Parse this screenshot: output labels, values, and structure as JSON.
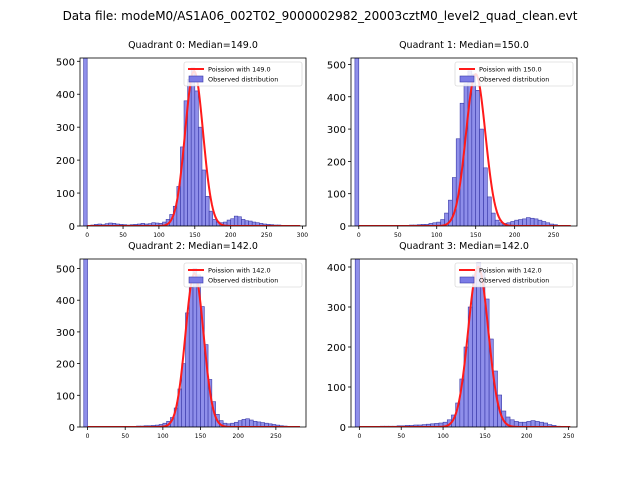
{
  "figure_title": "Data file: modeM0/AS1A06_002T02_9000002982_20003cztM0_level2_quad_clean.evt",
  "colors": {
    "hist_fill": "#7b7be6",
    "hist_edge": "#3a3aa8",
    "poisson_line": "#ff1a1a",
    "axis": "#000000"
  },
  "chart_data": [
    {
      "type": "bar",
      "title": "Quadrant 0: Median=149.0",
      "legend": [
        "Poission with 149.0",
        "Observed distribution"
      ],
      "legend_position": "top-right",
      "xlim": [
        -10,
        305
      ],
      "ylim": [
        0,
        510
      ],
      "xticks": [
        0,
        50,
        100,
        150,
        200,
        250,
        300
      ],
      "yticks": [
        0,
        100,
        200,
        300,
        400,
        500
      ],
      "median": 149.0,
      "poisson_peak": 470,
      "poisson_sigma": 12.5,
      "spike_height": 510,
      "hist_x": [
        -2.5,
        2.5,
        7.5,
        12.5,
        17.5,
        22.5,
        27.5,
        32.5,
        37.5,
        42.5,
        47.5,
        52.5,
        57.5,
        62.5,
        67.5,
        72.5,
        77.5,
        82.5,
        87.5,
        92.5,
        97.5,
        102.5,
        107.5,
        112.5,
        117.5,
        122.5,
        127.5,
        132.5,
        137.5,
        142.5,
        147.5,
        152.5,
        157.5,
        162.5,
        167.5,
        172.5,
        177.5,
        182.5,
        187.5,
        192.5,
        197.5,
        202.5,
        207.5,
        212.5,
        217.5,
        222.5,
        227.5,
        232.5,
        237.5,
        242.5,
        247.5,
        252.5,
        257.5,
        262.5,
        267.5,
        272.5,
        277.5,
        282.5,
        287.5
      ],
      "hist_values": [
        510,
        0,
        3,
        5,
        6,
        4,
        7,
        9,
        8,
        6,
        5,
        4,
        3,
        4,
        5,
        6,
        8,
        6,
        7,
        10,
        9,
        8,
        12,
        20,
        35,
        60,
        120,
        240,
        380,
        445,
        480,
        410,
        300,
        170,
        90,
        45,
        20,
        12,
        10,
        12,
        18,
        22,
        30,
        28,
        20,
        16,
        15,
        12,
        10,
        8,
        6,
        5,
        4,
        3,
        3,
        2,
        2,
        1,
        1
      ]
    },
    {
      "type": "bar",
      "title": "Quadrant 1: Median=150.0",
      "legend": [
        "Poission with 150.0",
        "Observed distribution"
      ],
      "legend_position": "top-right",
      "xlim": [
        -10,
        280
      ],
      "ylim": [
        0,
        520
      ],
      "xticks": [
        0,
        50,
        100,
        150,
        200,
        250
      ],
      "yticks": [
        0,
        100,
        200,
        300,
        400,
        500
      ],
      "median": 150.0,
      "poisson_peak": 470,
      "poisson_sigma": 12.5,
      "spike_height": 520,
      "hist_x": [
        -2.5,
        2.5,
        7.5,
        12.5,
        17.5,
        22.5,
        27.5,
        32.5,
        37.5,
        42.5,
        47.5,
        52.5,
        57.5,
        62.5,
        67.5,
        72.5,
        77.5,
        82.5,
        87.5,
        92.5,
        97.5,
        102.5,
        107.5,
        112.5,
        117.5,
        122.5,
        127.5,
        132.5,
        137.5,
        142.5,
        147.5,
        152.5,
        157.5,
        162.5,
        167.5,
        172.5,
        177.5,
        182.5,
        187.5,
        192.5,
        197.5,
        202.5,
        207.5,
        212.5,
        217.5,
        222.5,
        227.5,
        232.5,
        237.5,
        242.5,
        247.5,
        252.5,
        257.5,
        262.5
      ],
      "hist_values": [
        520,
        0,
        1,
        1,
        1,
        2,
        2,
        2,
        1,
        2,
        1,
        1,
        2,
        2,
        3,
        3,
        4,
        5,
        5,
        8,
        10,
        12,
        20,
        40,
        80,
        150,
        270,
        380,
        440,
        480,
        470,
        420,
        300,
        180,
        90,
        40,
        18,
        10,
        8,
        10,
        14,
        18,
        20,
        22,
        26,
        24,
        22,
        18,
        14,
        10,
        6,
        4,
        2,
        1
      ]
    },
    {
      "type": "bar",
      "title": "Quadrant 2: Median=142.0",
      "legend": [
        "Poission with 142.0",
        "Observed distribution"
      ],
      "legend_position": "top-right",
      "xlim": [
        -10,
        290
      ],
      "ylim": [
        0,
        530
      ],
      "xticks": [
        0,
        50,
        100,
        150,
        200,
        250
      ],
      "yticks": [
        0,
        100,
        200,
        300,
        400,
        500
      ],
      "median": 142.0,
      "poisson_peak": 485,
      "poisson_sigma": 12.0,
      "spike_height": 530,
      "hist_x": [
        -2.5,
        2.5,
        7.5,
        12.5,
        17.5,
        22.5,
        27.5,
        32.5,
        37.5,
        42.5,
        47.5,
        52.5,
        57.5,
        62.5,
        67.5,
        72.5,
        77.5,
        82.5,
        87.5,
        92.5,
        97.5,
        102.5,
        107.5,
        112.5,
        117.5,
        122.5,
        127.5,
        132.5,
        137.5,
        142.5,
        147.5,
        152.5,
        157.5,
        162.5,
        167.5,
        172.5,
        177.5,
        182.5,
        187.5,
        192.5,
        197.5,
        202.5,
        207.5,
        212.5,
        217.5,
        222.5,
        227.5,
        232.5,
        237.5,
        242.5,
        247.5,
        252.5,
        257.5,
        262.5,
        267.5,
        272.5
      ],
      "hist_values": [
        530,
        0,
        1,
        1,
        1,
        1,
        1,
        1,
        1,
        1,
        2,
        2,
        2,
        2,
        3,
        3,
        4,
        4,
        5,
        6,
        8,
        12,
        18,
        30,
        60,
        120,
        200,
        360,
        440,
        500,
        480,
        380,
        260,
        150,
        80,
        40,
        20,
        12,
        10,
        12,
        15,
        20,
        24,
        26,
        22,
        18,
        16,
        14,
        12,
        10,
        8,
        6,
        4,
        3,
        2,
        1
      ]
    },
    {
      "type": "bar",
      "title": "Quadrant 3: Median=142.0",
      "legend": [
        "Poission with 142.0",
        "Observed distribution"
      ],
      "legend_position": "top-right",
      "xlim": [
        -10,
        260
      ],
      "ylim": [
        0,
        420
      ],
      "xticks": [
        0,
        50,
        100,
        150,
        200,
        250
      ],
      "yticks": [
        0,
        100,
        200,
        300,
        400
      ],
      "median": 142.0,
      "poisson_peak": 400,
      "poisson_sigma": 12.0,
      "spike_height": 420,
      "hist_x": [
        -2.5,
        2.5,
        7.5,
        12.5,
        17.5,
        22.5,
        27.5,
        32.5,
        37.5,
        42.5,
        47.5,
        52.5,
        57.5,
        62.5,
        67.5,
        72.5,
        77.5,
        82.5,
        87.5,
        92.5,
        97.5,
        102.5,
        107.5,
        112.5,
        117.5,
        122.5,
        127.5,
        132.5,
        137.5,
        142.5,
        147.5,
        152.5,
        157.5,
        162.5,
        167.5,
        172.5,
        177.5,
        182.5,
        187.5,
        192.5,
        197.5,
        202.5,
        207.5,
        212.5,
        217.5,
        222.5,
        227.5,
        232.5,
        237.5,
        242.5
      ],
      "hist_values": [
        420,
        0,
        1,
        1,
        1,
        1,
        2,
        2,
        2,
        2,
        3,
        3,
        4,
        4,
        5,
        5,
        6,
        7,
        8,
        9,
        10,
        12,
        18,
        30,
        60,
        120,
        200,
        300,
        380,
        410,
        390,
        320,
        220,
        140,
        80,
        40,
        25,
        18,
        14,
        12,
        12,
        14,
        16,
        14,
        12,
        10,
        6,
        4,
        2,
        1
      ]
    }
  ]
}
